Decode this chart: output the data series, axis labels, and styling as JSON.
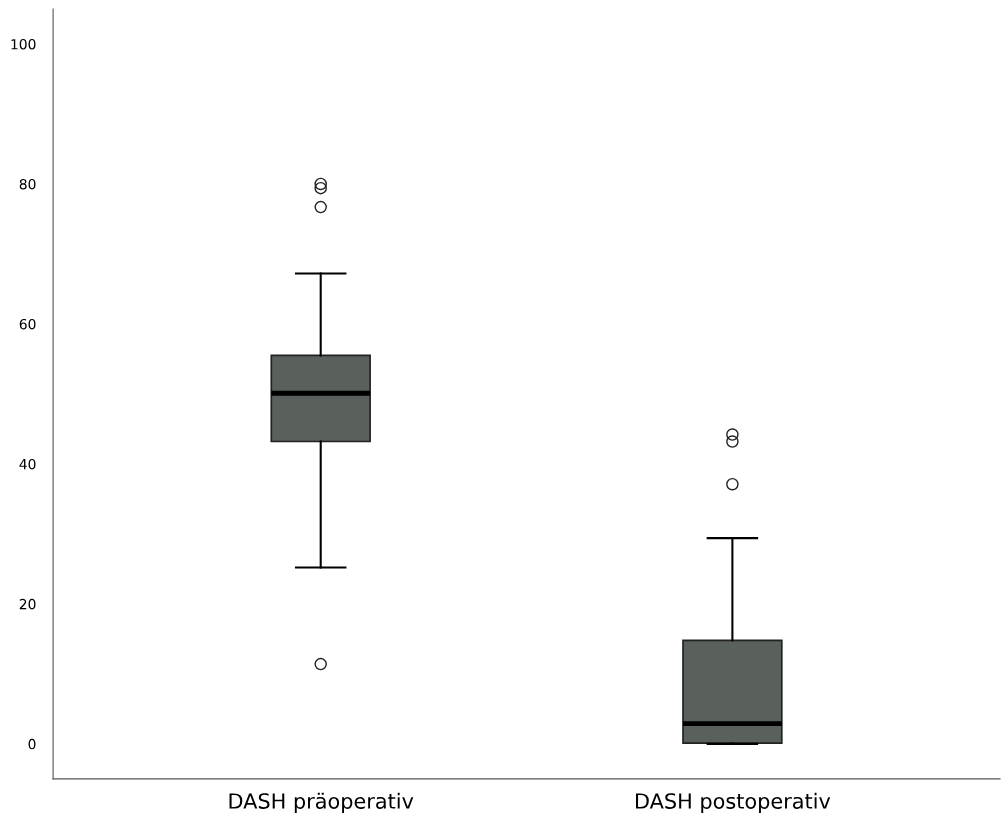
{
  "chart_data": {
    "type": "box",
    "categories": [
      "DASH präoperativ",
      "DASH postoperativ"
    ],
    "color": "#5a605b",
    "boxes": [
      {
        "low": 25.2,
        "q1": 43.2,
        "median": 50.1,
        "q3": 55.5,
        "high": 67.2,
        "outliers": [
          80.0,
          79.4,
          76.7,
          11.4
        ]
      },
      {
        "low": 0,
        "q1": 0.1,
        "median": 2.9,
        "q3": 14.8,
        "high": 29.4,
        "outliers": [
          44.2,
          43.2,
          37.1
        ]
      }
    ],
    "ylim": [
      -5,
      105
    ],
    "yticks": [
      0,
      20,
      40,
      60,
      80,
      100
    ],
    "grid": false,
    "legend": false
  }
}
